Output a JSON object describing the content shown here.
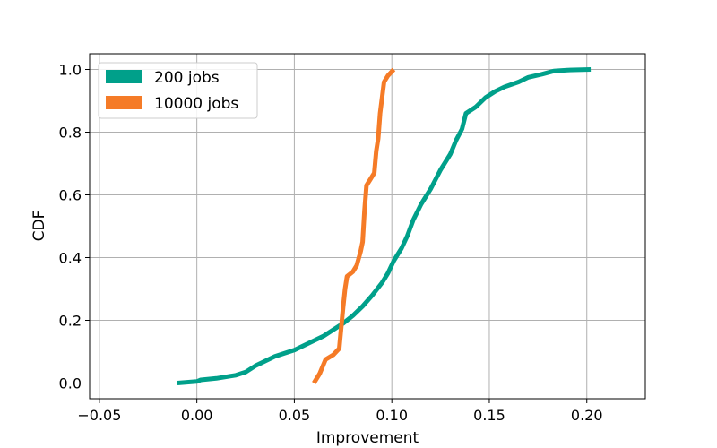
{
  "chart_data": {
    "type": "line",
    "title": "",
    "xlabel": "Improvement",
    "ylabel": "CDF",
    "xlim": [
      -0.055,
      0.23
    ],
    "ylim": [
      -0.05,
      1.05
    ],
    "xticks": [
      -0.05,
      0.0,
      0.05,
      0.1,
      0.15,
      0.2
    ],
    "xtick_labels": [
      "−0.05",
      "0.00",
      "0.05",
      "0.10",
      "0.15",
      "0.20"
    ],
    "yticks": [
      0.0,
      0.2,
      0.4,
      0.6,
      0.8,
      1.0
    ],
    "ytick_labels": [
      "0.0",
      "0.2",
      "0.4",
      "0.6",
      "0.8",
      "1.0"
    ],
    "grid": true,
    "legend_position": "top-left",
    "series": [
      {
        "name": "200 jobs",
        "color": "#00a08a",
        "points": [
          [
            -0.01,
            0.0
          ],
          [
            0.0,
            0.005
          ],
          [
            0.002,
            0.01
          ],
          [
            0.01,
            0.015
          ],
          [
            0.02,
            0.025
          ],
          [
            0.025,
            0.035
          ],
          [
            0.03,
            0.055
          ],
          [
            0.035,
            0.07
          ],
          [
            0.04,
            0.085
          ],
          [
            0.045,
            0.095
          ],
          [
            0.05,
            0.105
          ],
          [
            0.055,
            0.12
          ],
          [
            0.06,
            0.135
          ],
          [
            0.065,
            0.15
          ],
          [
            0.07,
            0.17
          ],
          [
            0.075,
            0.19
          ],
          [
            0.08,
            0.215
          ],
          [
            0.085,
            0.245
          ],
          [
            0.09,
            0.28
          ],
          [
            0.095,
            0.32
          ],
          [
            0.098,
            0.35
          ],
          [
            0.101,
            0.39
          ],
          [
            0.105,
            0.43
          ],
          [
            0.108,
            0.47
          ],
          [
            0.111,
            0.52
          ],
          [
            0.115,
            0.57
          ],
          [
            0.12,
            0.62
          ],
          [
            0.125,
            0.68
          ],
          [
            0.13,
            0.73
          ],
          [
            0.133,
            0.775
          ],
          [
            0.136,
            0.81
          ],
          [
            0.138,
            0.86
          ],
          [
            0.143,
            0.88
          ],
          [
            0.148,
            0.91
          ],
          [
            0.153,
            0.93
          ],
          [
            0.158,
            0.945
          ],
          [
            0.165,
            0.96
          ],
          [
            0.17,
            0.975
          ],
          [
            0.177,
            0.985
          ],
          [
            0.183,
            0.995
          ],
          [
            0.19,
            0.998
          ],
          [
            0.202,
            1.0
          ]
        ]
      },
      {
        "name": "10000 jobs",
        "color": "#f57b27",
        "points": [
          [
            0.06,
            0.0
          ],
          [
            0.063,
            0.03
          ],
          [
            0.066,
            0.075
          ],
          [
            0.07,
            0.09
          ],
          [
            0.073,
            0.11
          ],
          [
            0.075,
            0.24
          ],
          [
            0.076,
            0.3
          ],
          [
            0.077,
            0.34
          ],
          [
            0.08,
            0.355
          ],
          [
            0.082,
            0.375
          ],
          [
            0.084,
            0.42
          ],
          [
            0.085,
            0.45
          ],
          [
            0.086,
            0.55
          ],
          [
            0.087,
            0.63
          ],
          [
            0.089,
            0.65
          ],
          [
            0.091,
            0.67
          ],
          [
            0.092,
            0.74
          ],
          [
            0.093,
            0.78
          ],
          [
            0.094,
            0.86
          ],
          [
            0.096,
            0.96
          ],
          [
            0.098,
            0.98
          ],
          [
            0.101,
            1.0
          ]
        ]
      }
    ]
  }
}
